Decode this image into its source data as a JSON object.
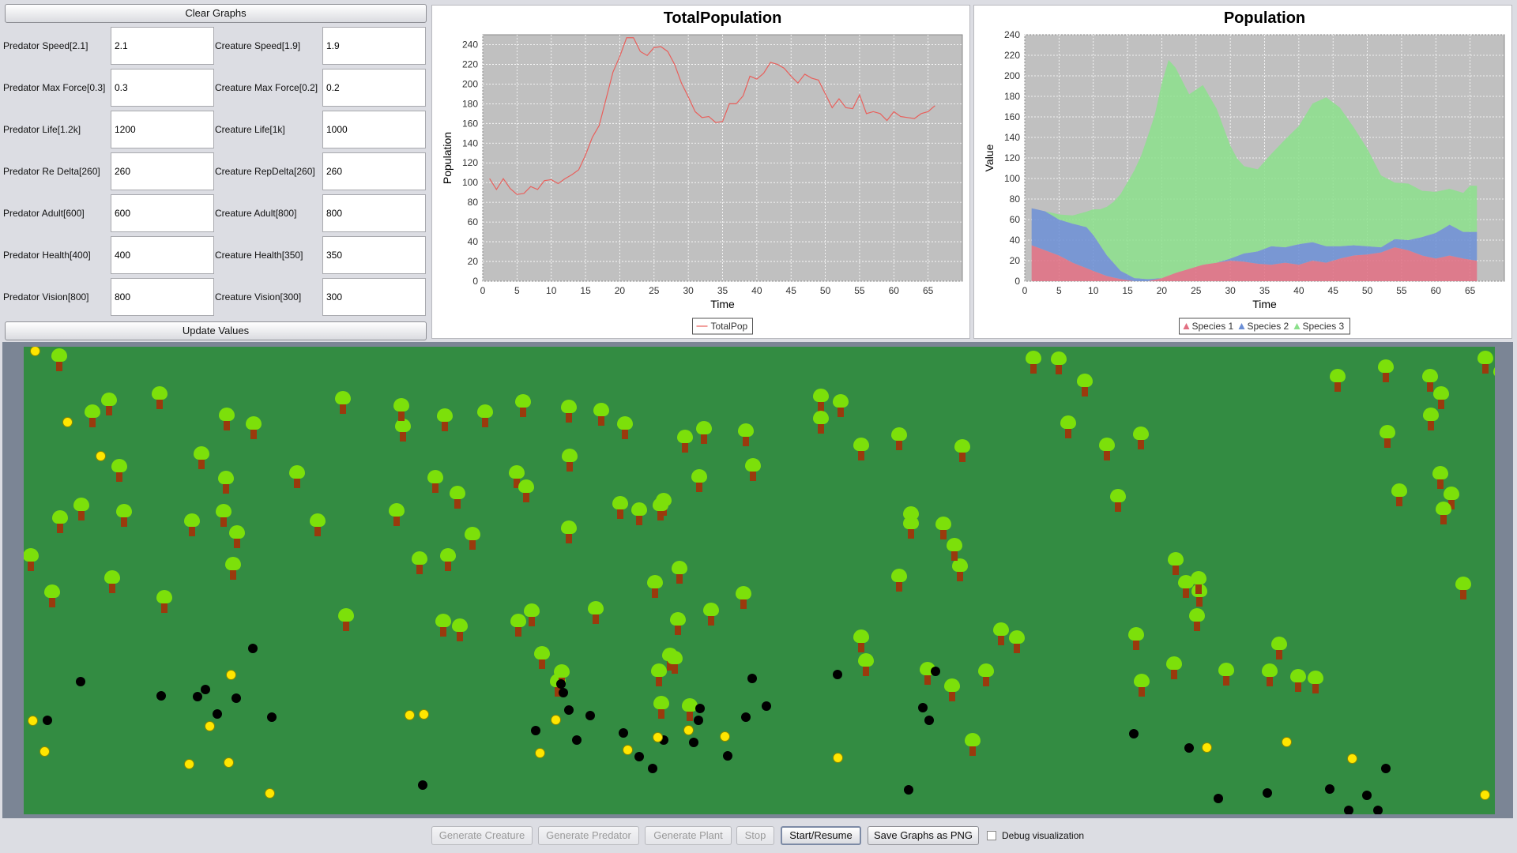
{
  "controls": {
    "clear_graphs": "Clear Graphs",
    "update_values": "Update Values"
  },
  "params": [
    {
      "pred_label": "Predator Speed[2.1]",
      "pred_value": "2.1",
      "cre_label": "Creature Speed[1.9]",
      "cre_value": "1.9"
    },
    {
      "pred_label": "Predator Max Force[0.3]",
      "pred_value": "0.3",
      "cre_label": "Creature Max Force[0.2]",
      "cre_value": "0.2"
    },
    {
      "pred_label": "Predator Life[1.2k]",
      "pred_value": "1200",
      "cre_label": "Creature Life[1k]",
      "cre_value": "1000"
    },
    {
      "pred_label": "Predator Re Delta[260]",
      "pred_value": "260",
      "cre_label": "Creature RepDelta[260]",
      "cre_value": "260"
    },
    {
      "pred_label": "Predator Adult[600]",
      "pred_value": "600",
      "cre_label": "Creature Adult[800]",
      "cre_value": "800"
    },
    {
      "pred_label": "Predator Health[400]",
      "pred_value": "400",
      "cre_label": "Creature Health[350]",
      "cre_value": "350"
    },
    {
      "pred_label": "Predator Vision[800]",
      "pred_value": "800",
      "cre_label": "Creature Vision[300]",
      "cre_value": "300"
    }
  ],
  "chart_data": [
    {
      "type": "line",
      "title": "TotalPopulation",
      "xlabel": "Time",
      "ylabel": "Population",
      "xlim": [
        0,
        70
      ],
      "ylim": [
        0,
        250
      ],
      "xticks": [
        "0",
        "5",
        "10",
        "15",
        "20",
        "25",
        "30",
        "35",
        "40",
        "45",
        "50",
        "55",
        "60",
        "65"
      ],
      "yticks": [
        "0",
        "20",
        "40",
        "60",
        "80",
        "100",
        "120",
        "140",
        "160",
        "180",
        "200",
        "220",
        "240"
      ],
      "grid": true,
      "legend": "bottom",
      "series": [
        {
          "name": "TotalPop",
          "color": "#e8605c",
          "x": [
            1,
            2,
            3,
            4,
            5,
            6,
            7,
            8,
            9,
            10,
            11,
            12,
            13,
            14,
            15,
            16,
            17,
            18,
            19,
            20,
            21,
            22,
            23,
            24,
            25,
            26,
            27,
            28,
            29,
            30,
            31,
            32,
            33,
            34,
            35,
            36,
            37,
            38,
            39,
            40,
            41,
            42,
            43,
            44,
            45,
            46,
            47,
            48,
            49,
            50,
            51,
            52,
            53,
            54,
            55,
            56,
            57,
            58,
            59,
            60,
            61,
            62,
            63,
            64,
            65,
            66
          ],
          "values": [
            104,
            93,
            104,
            94,
            88,
            89,
            96,
            93,
            102,
            103,
            99,
            104,
            108,
            113,
            128,
            146,
            158,
            185,
            212,
            228,
            247,
            247,
            233,
            229,
            237,
            238,
            233,
            220,
            201,
            187,
            172,
            166,
            167,
            161,
            162,
            180,
            180,
            188,
            208,
            205,
            211,
            222,
            220,
            216,
            208,
            201,
            210,
            206,
            204,
            190,
            176,
            185,
            176,
            175,
            189,
            170,
            172,
            170,
            163,
            172,
            167,
            166,
            165,
            170,
            172,
            178
          ]
        }
      ]
    },
    {
      "type": "area",
      "title": "Population",
      "xlabel": "Time",
      "ylabel": "Value",
      "xlim": [
        0,
        70
      ],
      "ylim": [
        0,
        240
      ],
      "xticks": [
        "0",
        "5",
        "10",
        "15",
        "20",
        "25",
        "30",
        "35",
        "40",
        "45",
        "50",
        "55",
        "60",
        "65"
      ],
      "yticks": [
        "0",
        "20",
        "40",
        "60",
        "80",
        "100",
        "120",
        "140",
        "160",
        "180",
        "200",
        "220",
        "240"
      ],
      "grid": true,
      "legend": "bottom",
      "series": [
        {
          "name": "Species 1",
          "color": "#e26f82",
          "x": [
            1,
            5,
            7,
            10,
            12,
            14,
            16,
            18,
            20,
            22,
            24,
            26,
            28,
            30,
            32,
            34,
            36,
            38,
            40,
            42,
            44,
            46,
            48,
            50,
            52,
            54,
            56,
            58,
            60,
            62,
            64,
            66
          ],
          "values": [
            35,
            25,
            18,
            10,
            5,
            2,
            0,
            0,
            3,
            8,
            12,
            16,
            18,
            20,
            19,
            17,
            16,
            18,
            16,
            20,
            18,
            22,
            25,
            26,
            28,
            33,
            30,
            25,
            22,
            25,
            22,
            20
          ]
        },
        {
          "name": "Species 2",
          "color": "#6c8fd6",
          "x": [
            1,
            3,
            5,
            7,
            9,
            10,
            12,
            14,
            16,
            18,
            20,
            22,
            24,
            26,
            28,
            30,
            32,
            34,
            36,
            38,
            40,
            42,
            44,
            46,
            48,
            50,
            52,
            54,
            56,
            58,
            60,
            62,
            64,
            66
          ],
          "values": [
            36,
            38,
            35,
            38,
            40,
            35,
            20,
            8,
            3,
            2,
            0,
            0,
            0,
            0,
            0,
            2,
            8,
            12,
            18,
            15,
            20,
            18,
            16,
            12,
            10,
            8,
            5,
            8,
            10,
            18,
            25,
            30,
            26,
            28
          ]
        },
        {
          "name": "Species 3",
          "color": "#8ce08c",
          "x": [
            1,
            3,
            5,
            7,
            9,
            11,
            13,
            15,
            17,
            19,
            20,
            21,
            22,
            23,
            24,
            26,
            28,
            30,
            31,
            32,
            34,
            36,
            38,
            40,
            42,
            43,
            44,
            46,
            48,
            50,
            52,
            54,
            56,
            58,
            60,
            62,
            64,
            65,
            66
          ],
          "values": [
            0,
            0,
            5,
            8,
            15,
            35,
            60,
            90,
            120,
            160,
            190,
            210,
            200,
            185,
            170,
            175,
            150,
            110,
            95,
            85,
            80,
            90,
            105,
            115,
            135,
            140,
            145,
            135,
            115,
            95,
            70,
            55,
            55,
            45,
            40,
            35,
            38,
            45,
            45
          ]
        }
      ]
    }
  ],
  "simulation": {
    "trees": [
      [
        45,
        0
      ],
      [
        9,
        253
      ],
      [
        36,
        299
      ],
      [
        108,
        56
      ],
      [
        121,
        140
      ],
      [
        87,
        71
      ],
      [
        73,
        189
      ],
      [
        46,
        205
      ],
      [
        112,
        281
      ],
      [
        172,
        48
      ],
      [
        127,
        197
      ],
      [
        178,
        306
      ],
      [
        257,
        75
      ],
      [
        256,
        155
      ],
      [
        213,
        209
      ],
      [
        225,
        124
      ],
      [
        253,
        197
      ],
      [
        291,
        86
      ],
      [
        346,
        148
      ],
      [
        270,
        224
      ],
      [
        265,
        264
      ],
      [
        404,
        54
      ],
      [
        408,
        329
      ],
      [
        372,
        209
      ],
      [
        480,
        89
      ],
      [
        478,
        63
      ],
      [
        533,
        76
      ],
      [
        521,
        154
      ],
      [
        549,
        174
      ],
      [
        568,
        226
      ],
      [
        472,
        196
      ],
      [
        501,
        257
      ],
      [
        537,
        253
      ],
      [
        531,
        336
      ],
      [
        552,
        342
      ],
      [
        624,
        148
      ],
      [
        584,
        71
      ],
      [
        626,
        336
      ],
      [
        676,
        412
      ],
      [
        656,
        377
      ],
      [
        643,
        323
      ],
      [
        636,
        166
      ],
      [
        690,
        65
      ],
      [
        691,
        127
      ],
      [
        681,
        400
      ],
      [
        632,
        58
      ],
      [
        731,
        69
      ],
      [
        690,
        218
      ],
      [
        761,
        86
      ],
      [
        837,
        103
      ],
      [
        855,
        153
      ],
      [
        755,
        187
      ],
      [
        779,
        195
      ],
      [
        810,
        183
      ],
      [
        724,
        320
      ],
      [
        828,
        334
      ],
      [
        818,
        379
      ],
      [
        807,
        440
      ],
      [
        799,
        287
      ],
      [
        806,
        189
      ],
      [
        830,
        269
      ],
      [
        870,
        322
      ],
      [
        804,
        399
      ],
      [
        824,
        383
      ],
      [
        843,
        443
      ],
      [
        861,
        92
      ],
      [
        911,
        301
      ],
      [
        914,
        95
      ],
      [
        923,
        139
      ],
      [
        1009,
        51
      ],
      [
        1009,
        79
      ],
      [
        1034,
        58
      ],
      [
        1060,
        113
      ],
      [
        1108,
        100
      ],
      [
        1123,
        200
      ],
      [
        1060,
        356
      ],
      [
        1066,
        386
      ],
      [
        1108,
        279
      ],
      [
        1123,
        212
      ],
      [
        1188,
        115
      ],
      [
        1185,
        266
      ],
      [
        1144,
        397
      ],
      [
        1175,
        418
      ],
      [
        1201,
        487
      ],
      [
        1178,
        240
      ],
      [
        1164,
        213
      ],
      [
        1218,
        399
      ],
      [
        1237,
        347
      ],
      [
        1257,
        357
      ],
      [
        1322,
        85
      ],
      [
        1278,
        3
      ],
      [
        1310,
        4
      ],
      [
        1343,
        32
      ],
      [
        1371,
        113
      ],
      [
        1385,
        178
      ],
      [
        1414,
        99
      ],
      [
        1408,
        353
      ],
      [
        1415,
        412
      ],
      [
        1456,
        390
      ],
      [
        1458,
        258
      ],
      [
        1471,
        287
      ],
      [
        1485,
        329
      ],
      [
        1488,
        298
      ],
      [
        1487,
        282
      ],
      [
        1522,
        398
      ],
      [
        1577,
        399
      ],
      [
        1613,
        406
      ],
      [
        1589,
        365
      ],
      [
        1635,
        408
      ],
      [
        1663,
        26
      ],
      [
        1724,
        14
      ],
      [
        1741,
        171
      ],
      [
        1726,
        97
      ],
      [
        1781,
        75
      ],
      [
        1780,
        26
      ],
      [
        1794,
        48
      ],
      [
        1793,
        149
      ],
      [
        1807,
        175
      ],
      [
        1797,
        194
      ],
      [
        1822,
        289
      ],
      [
        1870,
        20
      ],
      [
        1880,
        14
      ],
      [
        1850,
        3
      ]
    ],
    "black_dots": [
      [
        30,
        473
      ],
      [
        72,
        424
      ],
      [
        220,
        443
      ],
      [
        174,
        442
      ],
      [
        290,
        382
      ],
      [
        245,
        465
      ],
      [
        230,
        434
      ],
      [
        269,
        445
      ],
      [
        314,
        469
      ],
      [
        505,
        555
      ],
      [
        648,
        486
      ],
      [
        680,
        427
      ],
      [
        683,
        438
      ],
      [
        690,
        460
      ],
      [
        700,
        498
      ],
      [
        717,
        467
      ],
      [
        759,
        489
      ],
      [
        779,
        519
      ],
      [
        796,
        534
      ],
      [
        810,
        498
      ],
      [
        848,
        501
      ],
      [
        854,
        473
      ],
      [
        856,
        458
      ],
      [
        891,
        518
      ],
      [
        914,
        469
      ],
      [
        922,
        420
      ],
      [
        940,
        455
      ],
      [
        1030,
        415
      ],
      [
        1120,
        561
      ],
      [
        1138,
        457
      ],
      [
        1146,
        473
      ],
      [
        1154,
        411
      ],
      [
        1185,
        609
      ],
      [
        1405,
        490
      ],
      [
        1475,
        508
      ],
      [
        1512,
        572
      ],
      [
        1574,
        565
      ],
      [
        1595,
        628
      ],
      [
        1653,
        560
      ],
      [
        1677,
        587
      ],
      [
        1700,
        568
      ],
      [
        1714,
        587
      ],
      [
        1724,
        534
      ],
      [
        9,
        647
      ],
      [
        13,
        640
      ]
    ],
    "yellow_dots": [
      [
        14,
        5
      ],
      [
        11,
        473
      ],
      [
        26,
        512
      ],
      [
        209,
        528
      ],
      [
        235,
        480
      ],
      [
        259,
        526
      ],
      [
        262,
        415
      ],
      [
        311,
        565
      ],
      [
        488,
        466
      ],
      [
        506,
        465
      ],
      [
        653,
        514
      ],
      [
        673,
        472
      ],
      [
        764,
        510
      ],
      [
        802,
        494
      ],
      [
        841,
        485
      ],
      [
        887,
        493
      ],
      [
        1016,
        598
      ],
      [
        1030,
        520
      ],
      [
        1497,
        507
      ],
      [
        1598,
        500
      ],
      [
        1681,
        521
      ],
      [
        1678,
        617
      ],
      [
        1712,
        604
      ],
      [
        1849,
        567
      ],
      [
        218,
        626
      ],
      [
        55,
        95
      ],
      [
        97,
        138
      ]
    ]
  },
  "bottom": {
    "generate_creature": "Generate Creature",
    "generate_predator": "Generate Predator",
    "generate_plant": "Generate Plant",
    "stop": "Stop",
    "start_resume": "Start/Resume",
    "save_graphs": "Save Graphs as PNG",
    "debug": "Debug visualization"
  }
}
